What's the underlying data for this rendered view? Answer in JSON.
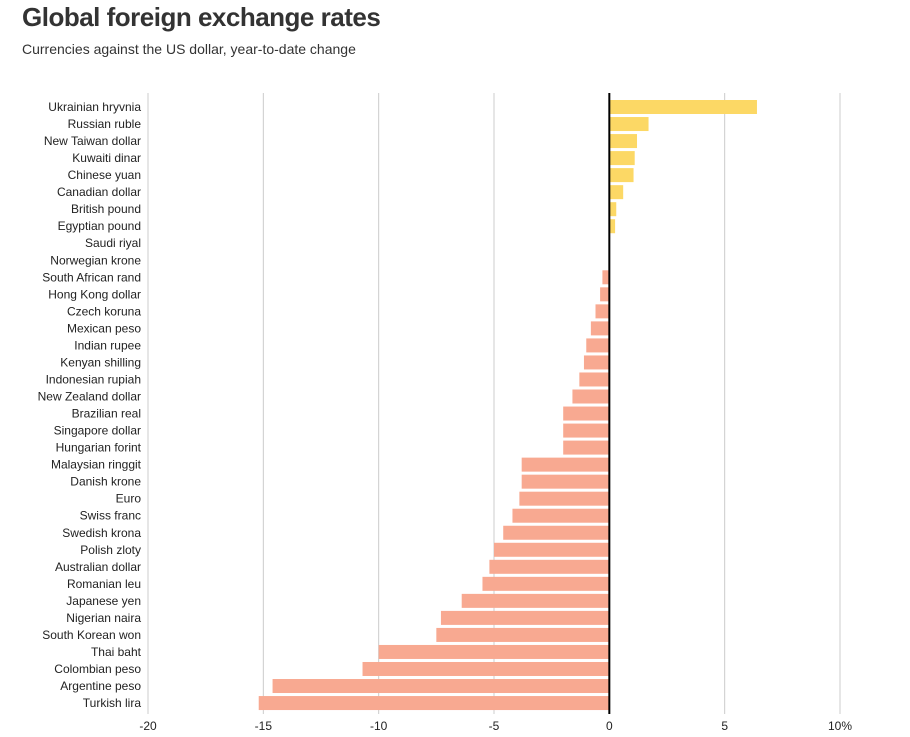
{
  "title": "Global foreign exchange rates",
  "subtitle": "Currencies against the US dollar, year-to-date change",
  "colors": {
    "positive": "#fcd865",
    "negative": "#f8a991",
    "grid": "#cccccc",
    "zero": "#000000"
  },
  "chart_data": {
    "type": "bar",
    "orientation": "horizontal",
    "title": "Global foreign exchange rates",
    "subtitle": "Currencies against the US dollar, year-to-date change",
    "xlabel": "",
    "ylabel": "",
    "xlim": [
      -20,
      10
    ],
    "x_ticks": [
      -20,
      -15,
      -10,
      -5,
      0,
      5,
      10
    ],
    "x_tick_labels": [
      "-20",
      "-15",
      "-10",
      "-5",
      "0",
      "5",
      "10%"
    ],
    "grid": "vertical",
    "categories": [
      "Ukrainian hryvnia",
      "Russian ruble",
      "New Taiwan dollar",
      "Kuwaiti dinar",
      "Chinese yuan",
      "Canadian dollar",
      "British pound",
      "Egyptian pound",
      "Saudi riyal",
      "Norwegian krone",
      "South African rand",
      "Hong Kong dollar",
      "Czech koruna",
      "Mexican peso",
      "Indian rupee",
      "Kenyan shilling",
      "Indonesian rupiah",
      "New Zealand dollar",
      "Brazilian real",
      "Singapore dollar",
      "Hungarian forint",
      "Malaysian ringgit",
      "Danish krone",
      "Euro",
      "Swiss franc",
      "Swedish krona",
      "Polish zloty",
      "Australian dollar",
      "Romanian leu",
      "Japanese yen",
      "Nigerian naira",
      "South Korean won",
      "Thai baht",
      "Colombian peso",
      "Argentine peso",
      "Turkish lira"
    ],
    "values": [
      6.4,
      1.7,
      1.2,
      1.1,
      1.05,
      0.6,
      0.3,
      0.25,
      0,
      0,
      -0.3,
      -0.4,
      -0.6,
      -0.8,
      -1.0,
      -1.1,
      -1.3,
      -1.6,
      -2.0,
      -2.0,
      -2.0,
      -3.8,
      -3.8,
      -3.9,
      -4.2,
      -4.6,
      -5.0,
      -5.2,
      -5.5,
      -6.4,
      -7.3,
      -7.5,
      -10.0,
      -10.7,
      -14.6,
      -15.2
    ]
  }
}
